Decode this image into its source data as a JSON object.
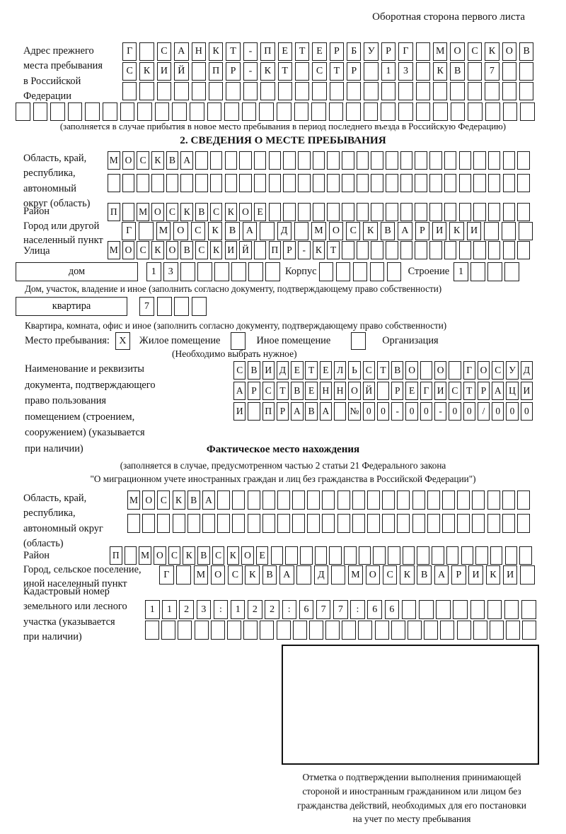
{
  "page_note": "Оборотная сторона первого листа",
  "prev_address": {
    "lines": [
      "Адрес прежнего",
      "места пребывания",
      "в Российской",
      "Федерации"
    ],
    "row1": {
      "count": 24,
      "cells": [
        "Г",
        "",
        "С",
        "А",
        "Н",
        "К",
        "Т",
        "-",
        "П",
        "Е",
        "Т",
        "Е",
        "Р",
        "Б",
        "У",
        "Р",
        "Г",
        "",
        "М",
        "О",
        "С",
        "К",
        "О",
        "В"
      ]
    },
    "row2": {
      "count": 24,
      "cells": [
        "С",
        "К",
        "И",
        "Й",
        "",
        "П",
        "Р",
        "-",
        "К",
        "Т",
        "",
        "С",
        "Т",
        "Р",
        "",
        "1",
        "3",
        "",
        "К",
        "В",
        "",
        "7"
      ]
    },
    "row3": {
      "count": 24,
      "cells": []
    },
    "row4": {
      "count": 30,
      "cells": []
    },
    "note": "(заполняется в случае прибытия в новое место пребывания в период последнего въезда в Российскую Федерацию)"
  },
  "section2": {
    "title": "2. СВЕДЕНИЯ О МЕСТЕ ПРЕБЫВАНИЯ",
    "oblast": {
      "lines": [
        "Область, край,",
        "республика,",
        "автономный",
        "округ (область)"
      ],
      "row1": {
        "count": 29,
        "cells": [
          "М",
          "О",
          "С",
          "К",
          "В",
          "А"
        ]
      },
      "row2": {
        "count": 29,
        "cells": []
      }
    },
    "rajon": {
      "label": "Район",
      "row": {
        "count": 29,
        "cells": [
          "П",
          "",
          "М",
          "О",
          "С",
          "К",
          "В",
          "С",
          "К",
          "О",
          "Е"
        ]
      }
    },
    "gorod": {
      "lines": [
        "Город или другой",
        "населенный пункт"
      ],
      "row": {
        "count": 24,
        "cells": [
          "Г",
          "",
          "М",
          "О",
          "С",
          "К",
          "В",
          "А",
          "",
          "Д",
          "",
          "М",
          "О",
          "С",
          "К",
          "В",
          "А",
          "Р",
          "И",
          "К",
          "И"
        ]
      }
    },
    "ulica": {
      "label": "Улица",
      "row": {
        "count": 29,
        "cells": [
          "М",
          "О",
          "С",
          "К",
          "О",
          "В",
          "С",
          "К",
          "И",
          "Й",
          "",
          "П",
          "Р",
          "-",
          "К",
          "Т"
        ]
      }
    },
    "dom": {
      "label": "дом",
      "row": {
        "count": 8,
        "cells": [
          "1",
          "3"
        ]
      },
      "korpus_label": "Корпус",
      "korpus_row": {
        "count": 5,
        "cells": []
      },
      "stroenie_label": "Строение",
      "stroenie_row": {
        "count": 4,
        "cells": [
          "1"
        ]
      },
      "note": "Дом, участок, владение и иное (заполнить согласно документу, подтверждающему право собственности)"
    },
    "kvartira": {
      "label": "квартира",
      "row": {
        "count": 4,
        "cells": [
          "7"
        ]
      },
      "note": "Квартира, комната, офис и иное (заполнить согласно документу, подтверждающему право собственности)"
    },
    "mesto": {
      "label": "Место пребывания:",
      "options": [
        {
          "label": "Жилое помещение",
          "mark": "X"
        },
        {
          "label": "Иное помещение",
          "mark": ""
        },
        {
          "label": "Организация",
          "mark": ""
        }
      ],
      "note": "(Необходимо выбрать нужное)"
    },
    "doc": {
      "lines": [
        "Наименование и реквизиты",
        "документа, подтверждающего",
        "право пользования",
        "помещением (строением,",
        "сооружением) (указывается",
        "при наличии)"
      ],
      "row1": {
        "count": 21,
        "cells": [
          "С",
          "В",
          "И",
          "Д",
          "Е",
          "Т",
          "Е",
          "Л",
          "Ь",
          "С",
          "Т",
          "В",
          "О",
          "",
          "О",
          "",
          "Г",
          "О",
          "С",
          "У",
          "Д"
        ]
      },
      "row2": {
        "count": 21,
        "cells": [
          "А",
          "Р",
          "С",
          "Т",
          "В",
          "Е",
          "Н",
          "Н",
          "О",
          "Й",
          "",
          "Р",
          "Е",
          "Г",
          "И",
          "С",
          "Т",
          "Р",
          "А",
          "Ц",
          "И"
        ]
      },
      "row3": {
        "count": 21,
        "cells": [
          "И",
          "",
          "П",
          "Р",
          "А",
          "В",
          "А",
          "",
          "№",
          "0",
          "0",
          "-",
          "0",
          "0",
          "-",
          "0",
          "0",
          "/",
          "0",
          "0",
          "0"
        ]
      }
    }
  },
  "fact": {
    "title": "Фактическое место нахождения",
    "note1": "(заполняется в случае, предусмотренном частью 2 статьи 21 Федерального закона",
    "note2": "\"О миграционном учете иностранных граждан и лиц без гражданства в Российской Федерации\")",
    "oblast": {
      "lines": [
        "Область, край,",
        "республика,",
        "автономный округ",
        "(область)"
      ],
      "row1": {
        "count": 27,
        "cells": [
          "М",
          "О",
          "С",
          "К",
          "В",
          "А"
        ]
      },
      "row2": {
        "count": 27,
        "cells": []
      }
    },
    "rajon": {
      "label": "Район",
      "row": {
        "count": 29,
        "cells": [
          "П",
          "",
          "М",
          "О",
          "С",
          "К",
          "В",
          "С",
          "К",
          "О",
          "Е"
        ]
      }
    },
    "gorod": {
      "lines": [
        "Город, сельское поселение,",
        "иной населенный пункт"
      ],
      "row": {
        "count": 22,
        "cells": [
          "Г",
          "",
          "М",
          "О",
          "С",
          "К",
          "В",
          "А",
          "",
          "Д",
          "",
          "М",
          "О",
          "С",
          "К",
          "В",
          "А",
          "Р",
          "И",
          "К",
          "И"
        ]
      }
    },
    "kadastr": {
      "lines": [
        "Кадастровый номер",
        "земельного или лесного",
        "участка (указывается",
        "при наличии)"
      ],
      "row1": {
        "count": 23,
        "cells": [
          "1",
          "1",
          "2",
          "3",
          ":",
          "1",
          "2",
          "2",
          ":",
          "6",
          "7",
          "7",
          ":",
          "6",
          "6"
        ]
      },
      "row2": {
        "count": 24,
        "cells": []
      }
    }
  },
  "stamp": {
    "caption_lines": [
      "Отметка о подтверждении выполнения принимающей",
      "стороной и иностранным гражданином или лицом без",
      "гражданства действий, необходимых для его постановки",
      "на учет по месту пребывания"
    ]
  }
}
